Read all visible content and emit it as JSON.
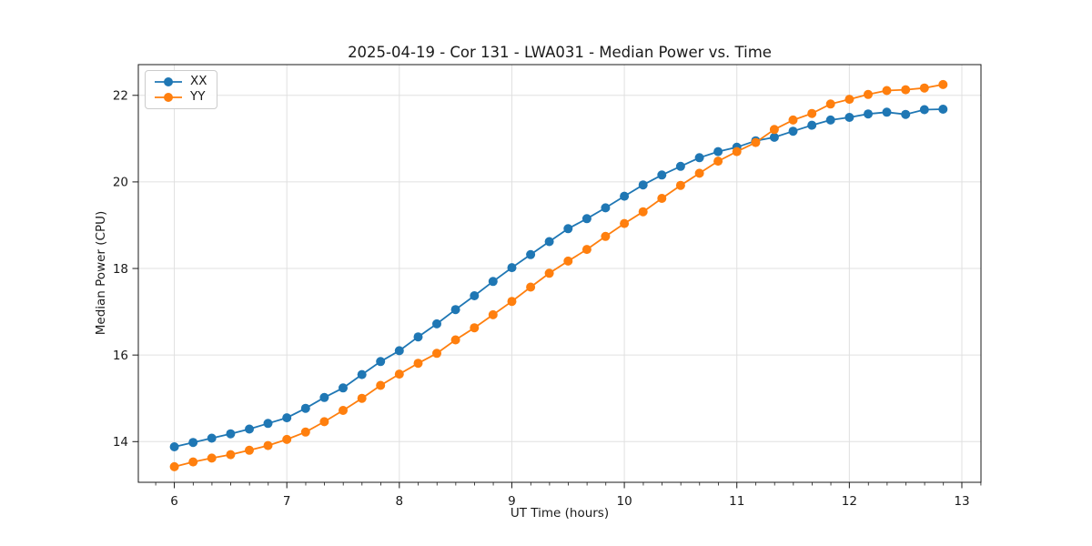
{
  "chart_data": {
    "type": "line",
    "title": "2025-04-19 - Cor 131 - LWA031 - Median Power vs. Time",
    "xlabel": "UT Time (hours)",
    "ylabel": "Median Power (CPU)",
    "grid": true,
    "legend_position": "upper left",
    "xlim": [
      5.68,
      13.17
    ],
    "ylim": [
      13.06,
      22.71
    ],
    "xticks": [
      6,
      7,
      8,
      9,
      10,
      11,
      12,
      13
    ],
    "yticks": [
      14,
      16,
      18,
      20,
      22
    ],
    "x_minor_step": 0.1667,
    "x": [
      6.0,
      6.167,
      6.333,
      6.5,
      6.667,
      6.833,
      7.0,
      7.167,
      7.333,
      7.5,
      7.667,
      7.833,
      8.0,
      8.167,
      8.333,
      8.5,
      8.667,
      8.833,
      9.0,
      9.167,
      9.333,
      9.5,
      9.667,
      9.833,
      10.0,
      10.167,
      10.333,
      10.5,
      10.667,
      10.833,
      11.0,
      11.167,
      11.333,
      11.5,
      11.667,
      11.833,
      12.0,
      12.167,
      12.333,
      12.5,
      12.667,
      12.833
    ],
    "series": [
      {
        "name": "XX",
        "color": "#1f77b4",
        "values": [
          13.88,
          13.98,
          14.08,
          14.18,
          14.29,
          14.42,
          14.55,
          14.77,
          15.02,
          15.24,
          15.55,
          15.85,
          16.1,
          16.42,
          16.72,
          17.05,
          17.37,
          17.7,
          18.02,
          18.32,
          18.62,
          18.92,
          19.15,
          19.4,
          19.67,
          19.93,
          20.16,
          20.36,
          20.56,
          20.7,
          20.8,
          20.95,
          21.03,
          21.17,
          21.31,
          21.43,
          21.49,
          21.57,
          21.61,
          21.56,
          21.67,
          21.68
        ]
      },
      {
        "name": "YY",
        "color": "#ff7f0e",
        "values": [
          13.42,
          13.53,
          13.62,
          13.7,
          13.8,
          13.91,
          14.05,
          14.22,
          14.46,
          14.72,
          15.0,
          15.3,
          15.56,
          15.81,
          16.04,
          16.35,
          16.63,
          16.93,
          17.24,
          17.57,
          17.89,
          18.17,
          18.44,
          18.74,
          19.04,
          19.31,
          19.62,
          19.92,
          20.2,
          20.48,
          20.7,
          20.91,
          21.21,
          21.43,
          21.58,
          21.8,
          21.91,
          22.02,
          22.11,
          22.13,
          22.17,
          22.25
        ]
      }
    ]
  }
}
